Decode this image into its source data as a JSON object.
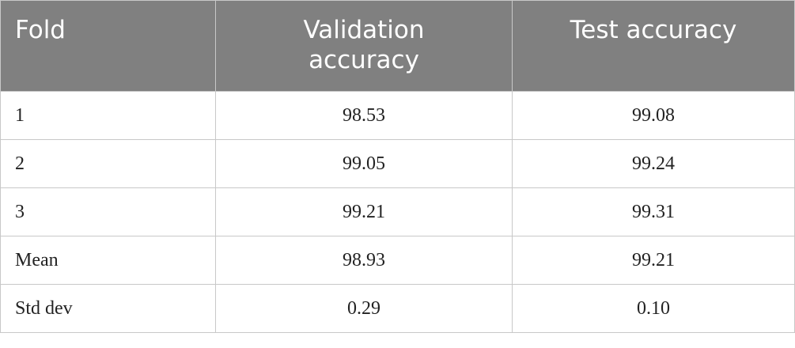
{
  "table": {
    "header": [
      "Fold",
      "Validation accuracy",
      "Test accuracy"
    ],
    "rows": [
      [
        "1",
        "98.53",
        "99.08"
      ],
      [
        "2",
        "99.05",
        "99.24"
      ],
      [
        "3",
        "99.21",
        "99.31"
      ],
      [
        "Mean",
        "98.93",
        "99.21"
      ],
      [
        "Std dev",
        "0.29",
        "0.10"
      ]
    ]
  }
}
